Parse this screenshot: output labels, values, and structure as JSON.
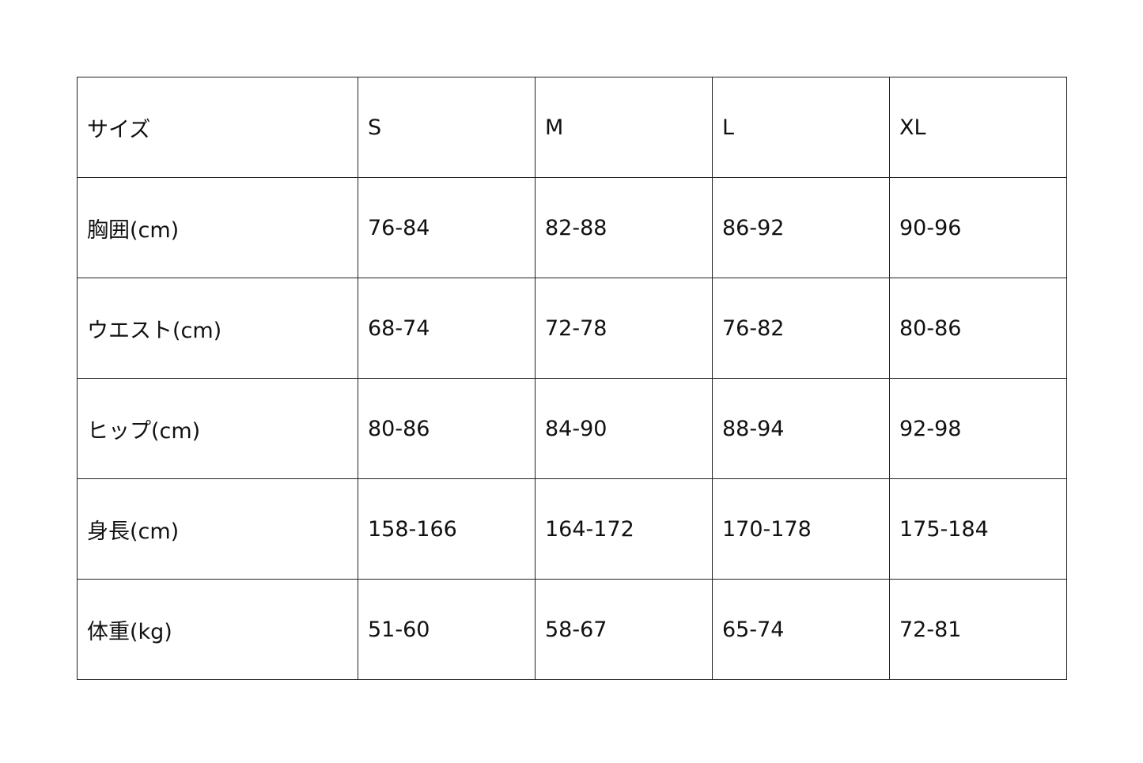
{
  "table": {
    "header": [
      "サイズ",
      "S",
      "M",
      "L",
      "XL"
    ],
    "rows": [
      [
        "胸囲(cm)",
        "76-84",
        "82-88",
        "86-92",
        "90-96"
      ],
      [
        "ウエスト(cm)",
        "68-74",
        "72-78",
        "76-82",
        "80-86"
      ],
      [
        "ヒップ(cm)",
        "80-86",
        "84-90",
        "88-94",
        "92-98"
      ],
      [
        "身長(cm)",
        "158-166",
        "164-172",
        "170-178",
        "175-184"
      ],
      [
        "体重(kg)",
        "51-60",
        "58-67",
        "65-74",
        "72-81"
      ]
    ]
  }
}
